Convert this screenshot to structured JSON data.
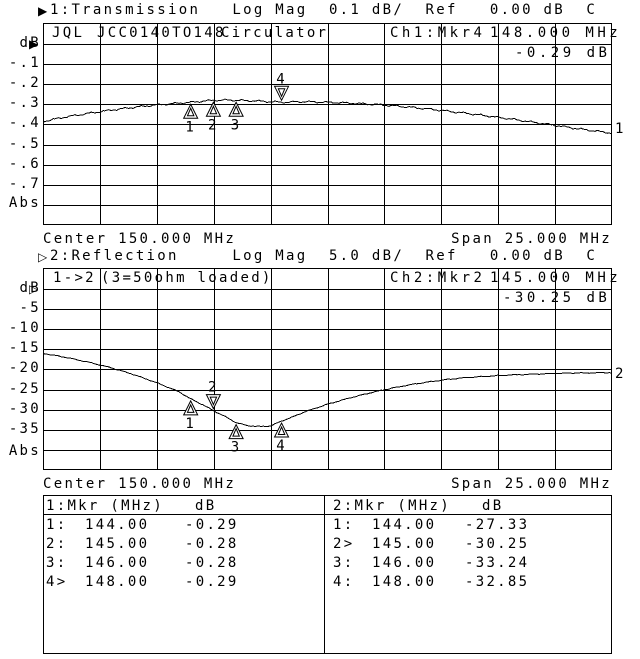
{
  "colors": {
    "foreground": "#000000",
    "background": "#ffffff"
  },
  "channel1": {
    "marker_glyph": "▶",
    "annotation": "1:Transmission   Log Mag  0.1 dB/  Ref   0.00 dB  C",
    "title_cells": {
      "operator": "JQL",
      "device": "JCC0140TO148",
      "description": "Circulator",
      "marker_label": "Ch1:Mkr4",
      "marker_freq": "148.000 MHz"
    },
    "marker_readout": "-0.29 dB",
    "unit_label": "dB",
    "ref_arrow_glyph": "▶",
    "y_labels": [
      "-.1",
      "-.2",
      "-.3",
      "-.4",
      "-.5",
      "-.6",
      "-.7"
    ],
    "abs_label": "Abs",
    "trace_number": "1",
    "center_label": "Center 150.000 MHz",
    "span_label": "Span 25.000 MHz"
  },
  "channel2": {
    "marker_glyph": "▷",
    "annotation": "2:Reflection     Log Mag  5.0 dB/  Ref   0.00 dB  C",
    "title_cells": {
      "path": "1->2",
      "note": "(3=50ohm loaded)",
      "marker_label": "Ch2:Mkr2",
      "marker_freq": "145.000 MHz"
    },
    "marker_readout": "-30.25 dB",
    "unit_label": "dB",
    "ref_arrow_glyph": "▷",
    "y_labels": [
      "-5",
      "-10",
      "-15",
      "-20",
      "-25",
      "-30",
      "-35"
    ],
    "abs_label": "Abs",
    "trace_number": "2",
    "center_label": "Center 150.000 MHz",
    "span_label": "Span 25.000 MHz"
  },
  "marker_tables": {
    "left": {
      "header": "1:Mkr (MHz)",
      "unit": "dB",
      "rows": [
        {
          "label": "1:",
          "freq": "144.00",
          "value": "-0.29"
        },
        {
          "label": "2:",
          "freq": "145.00",
          "value": "-0.28"
        },
        {
          "label": "3:",
          "freq": "146.00",
          "value": "-0.28"
        },
        {
          "label": "4>",
          "freq": "148.00",
          "value": "-0.29"
        }
      ]
    },
    "right": {
      "header": "2:Mkr (MHz)",
      "unit": "dB",
      "rows": [
        {
          "label": "1:",
          "freq": "144.00",
          "value": "-27.33"
        },
        {
          "label": "2>",
          "freq": "145.00",
          "value": "-30.25"
        },
        {
          "label": "3:",
          "freq": "146.00",
          "value": "-33.24"
        },
        {
          "label": "4:",
          "freq": "148.00",
          "value": "-32.85"
        }
      ]
    }
  },
  "chart_data": [
    {
      "type": "line",
      "channel": 1,
      "title": "1:Transmission",
      "format": "Log Mag",
      "scale_db_per_div": 0.1,
      "ref_db": 0.0,
      "center_mhz": 150.0,
      "span_mhz": 25.0,
      "xrange_mhz": [
        137.5,
        162.5
      ],
      "ylim_db": [
        -0.9,
        0.1
      ],
      "grid": true,
      "x_mhz": [
        137.5,
        138.5,
        139.5,
        140.5,
        141.5,
        142.5,
        143.5,
        144.0,
        145.0,
        145.5,
        146.0,
        147.0,
        148.0,
        149.0,
        150.0,
        151.0,
        152.0,
        153.0,
        154.0,
        155.0,
        156.0,
        157.0,
        158.0,
        159.0,
        160.0,
        161.0,
        162.5
      ],
      "y_db": [
        -0.385,
        -0.363,
        -0.345,
        -0.329,
        -0.315,
        -0.303,
        -0.294,
        -0.29,
        -0.28,
        -0.279,
        -0.28,
        -0.284,
        -0.29,
        -0.287,
        -0.29,
        -0.294,
        -0.3,
        -0.308,
        -0.318,
        -0.33,
        -0.343,
        -0.357,
        -0.372,
        -0.388,
        -0.404,
        -0.421,
        -0.443
      ],
      "markers": [
        {
          "n": "1",
          "mhz": 144.0,
          "db": -0.29,
          "active": false
        },
        {
          "n": "2",
          "mhz": 145.0,
          "db": -0.28,
          "active": false
        },
        {
          "n": "3",
          "mhz": 146.0,
          "db": -0.28,
          "active": false
        },
        {
          "n": "4",
          "mhz": 148.0,
          "db": -0.29,
          "active": true
        }
      ]
    },
    {
      "type": "line",
      "channel": 2,
      "title": "2:Reflection",
      "format": "Log Mag",
      "scale_db_per_div": 5.0,
      "ref_db": 0.0,
      "center_mhz": 150.0,
      "span_mhz": 25.0,
      "xrange_mhz": [
        137.5,
        162.5
      ],
      "ylim_db": [
        -45,
        5
      ],
      "grid": true,
      "x_mhz": [
        137.5,
        138.5,
        139.5,
        140.5,
        141.5,
        142.5,
        143.5,
        144.0,
        144.5,
        145.0,
        145.5,
        146.0,
        146.5,
        147.0,
        147.5,
        148.0,
        148.5,
        149.0,
        150.0,
        151.0,
        152.0,
        153.0,
        154.0,
        155.0,
        156.0,
        157.0,
        158.0,
        159.0,
        160.0,
        161.0,
        162.5
      ],
      "y_db": [
        -16.0,
        -17.0,
        -18.2,
        -19.6,
        -21.3,
        -23.3,
        -25.6,
        -27.33,
        -28.7,
        -30.25,
        -31.7,
        -33.24,
        -34.0,
        -34.2,
        -34.1,
        -32.85,
        -31.8,
        -30.6,
        -28.7,
        -27.1,
        -25.7,
        -24.5,
        -23.5,
        -22.7,
        -22.1,
        -21.7,
        -21.4,
        -21.2,
        -21.0,
        -20.9,
        -20.8
      ],
      "markers": [
        {
          "n": "1",
          "mhz": 144.0,
          "db": -27.33,
          "active": false
        },
        {
          "n": "2",
          "mhz": 145.0,
          "db": -30.25,
          "active": true
        },
        {
          "n": "3",
          "mhz": 146.0,
          "db": -33.24,
          "active": false
        },
        {
          "n": "4",
          "mhz": 148.0,
          "db": -32.85,
          "active": false
        }
      ]
    }
  ]
}
